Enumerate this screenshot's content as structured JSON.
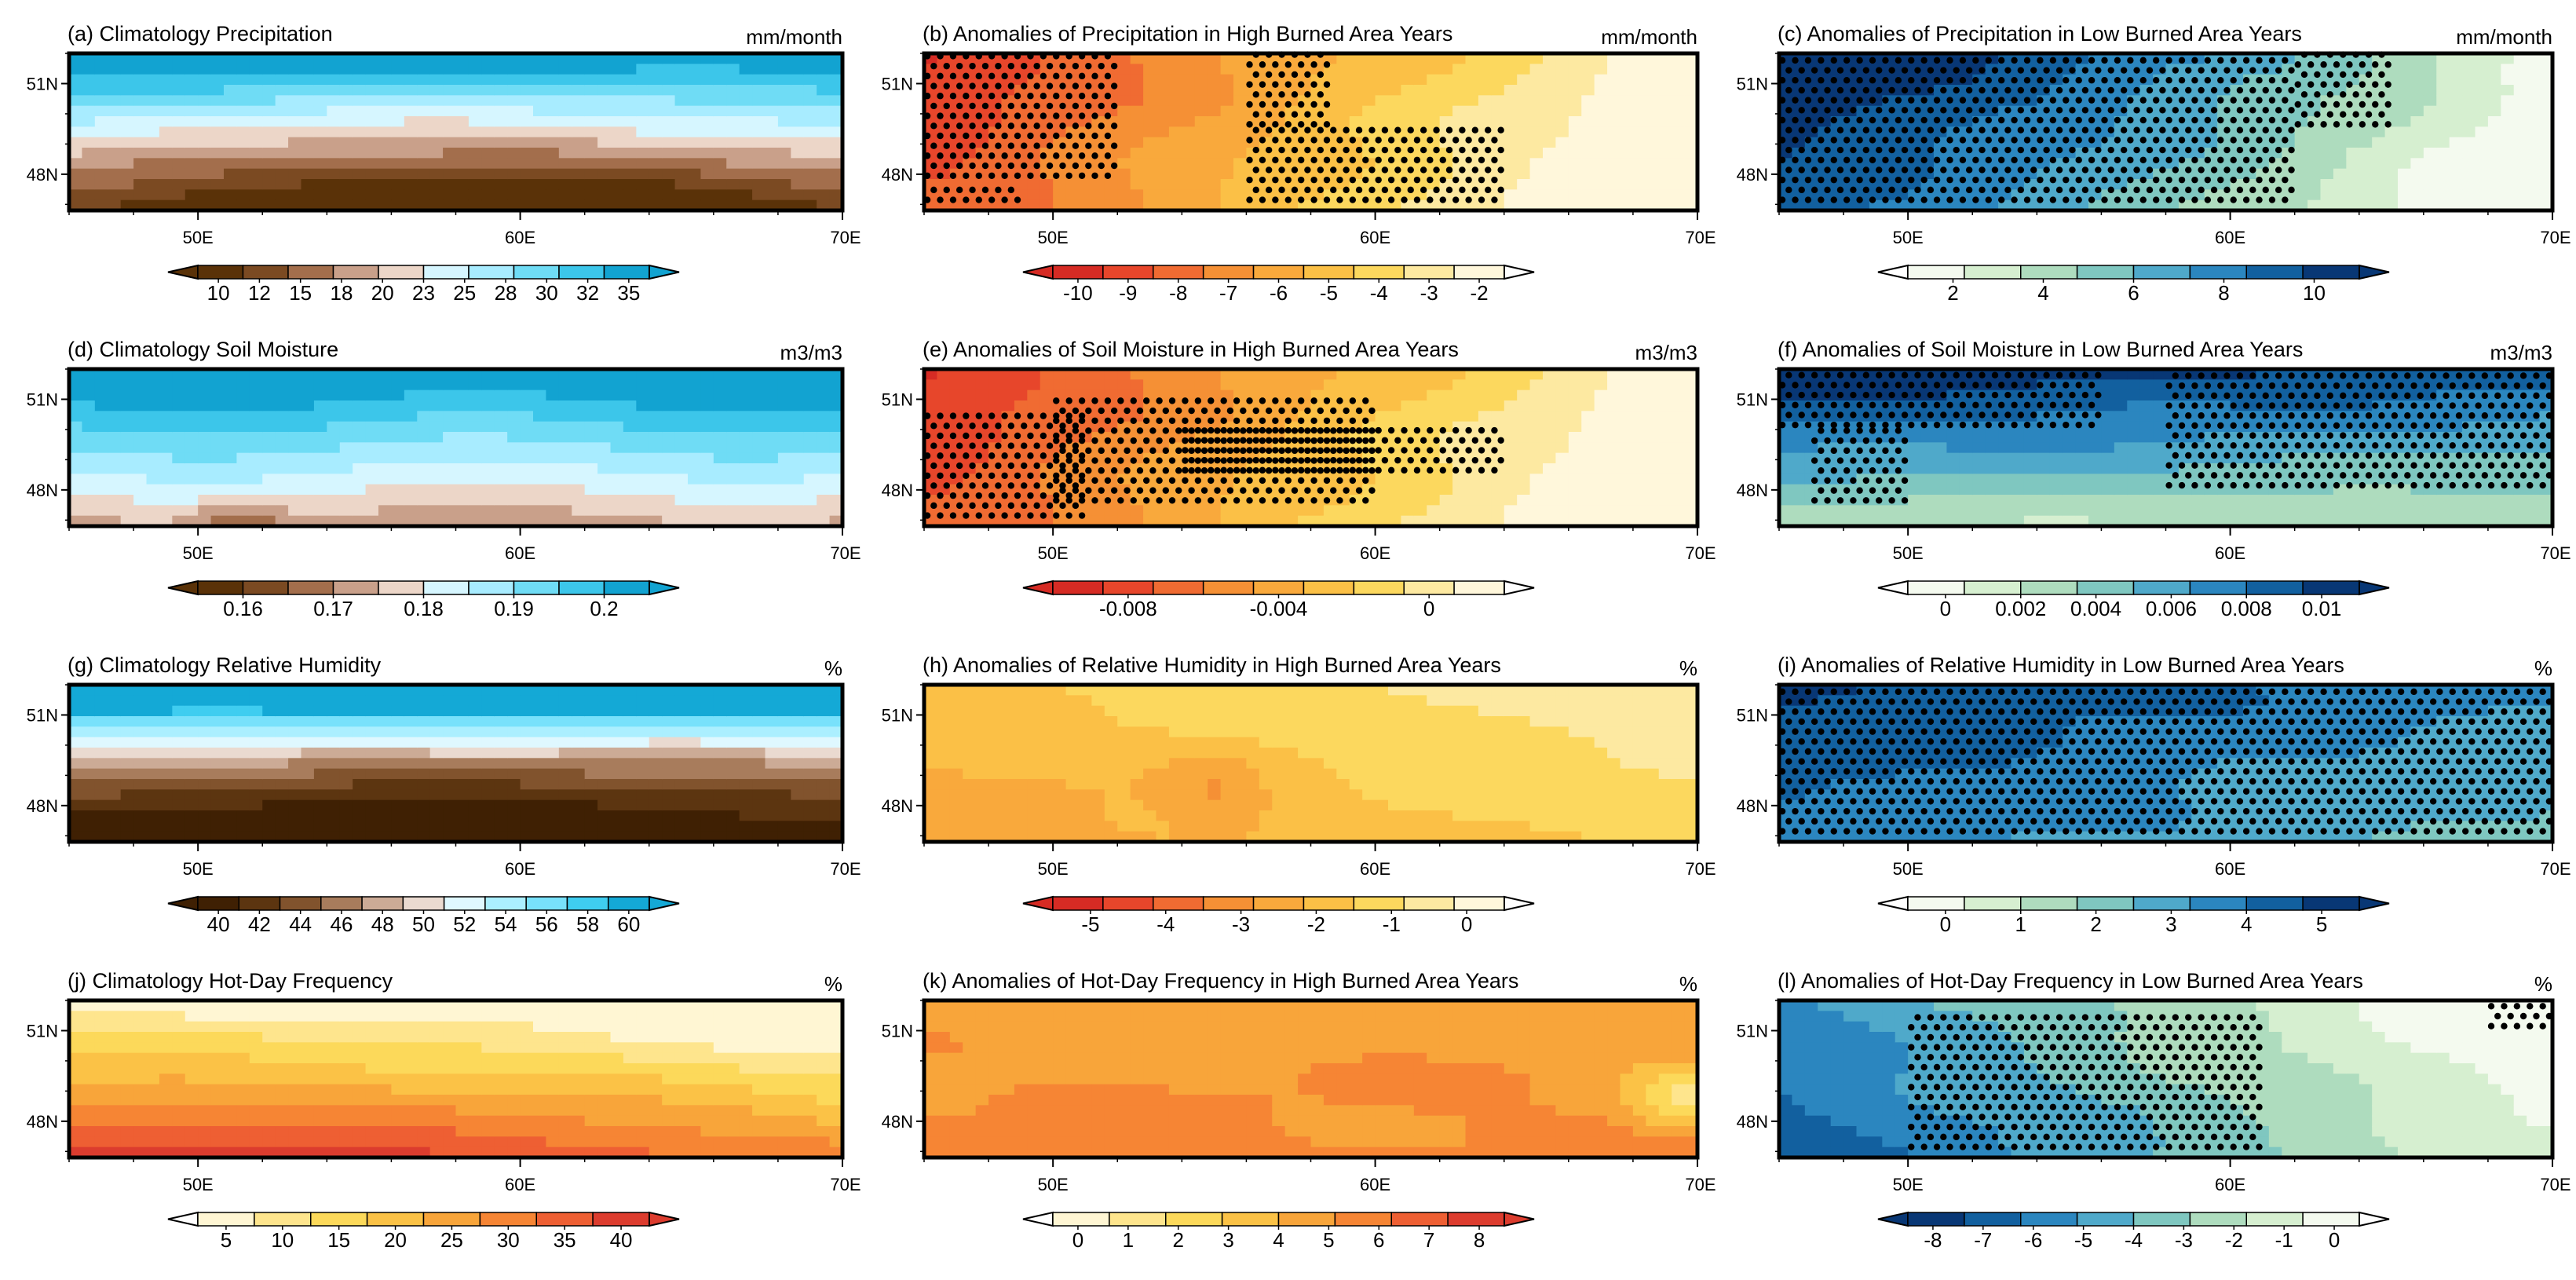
{
  "figure": {
    "x_ticks": [
      "50E",
      "60E",
      "70E"
    ],
    "y_ticks": [
      "51N",
      "48N"
    ],
    "colors": {
      "brown_blue": [
        "#5a3208",
        "#7b4a22",
        "#a36e4c",
        "#c9a08a",
        "#ecd6c8",
        "#d6f6ff",
        "#a8ecff",
        "#6fdcf5",
        "#3cc6ea",
        "#12a3d1"
      ],
      "brown_blue_rh": [
        "#3f2003",
        "#5c3510",
        "#81532d",
        "#a87c5c",
        "#ccab96",
        "#eadad0",
        "#dff8ff",
        "#abefff",
        "#78e1fb",
        "#3fcdf0",
        "#14a9d6"
      ],
      "warm_hotday": [
        "#fff6d3",
        "#fee58d",
        "#fcd95a",
        "#fbc246",
        "#f8a53a",
        "#f68534",
        "#ee5f33",
        "#dc3c2e"
      ],
      "red_yellow": [
        "#d62b24",
        "#e7462b",
        "#f06b32",
        "#f59035",
        "#f9a93c",
        "#fbc046",
        "#fcd85e",
        "#fde9a1",
        "#fff7db"
      ],
      "green_blue": [
        "#f4faef",
        "#d6efd0",
        "#aedcbe",
        "#7fc7c0",
        "#4fa9ca",
        "#2b86bf",
        "#12609f",
        "#083775"
      ],
      "blue_green": [
        "#083775",
        "#12609f",
        "#2b86bf",
        "#4fa9ca",
        "#7fc7c0",
        "#aedcbe",
        "#d6efd0",
        "#f4faef"
      ],
      "white": "#ffffff",
      "dot": "#000000"
    }
  },
  "chart_data": [
    {
      "id": "a",
      "type": "heatmap",
      "title": "(a) Climatology Precipitation",
      "unit": "mm/month",
      "palette": "brown_blue",
      "colorbar_ticks": [
        "10",
        "12",
        "15",
        "18",
        "20",
        "23",
        "25",
        "28",
        "30",
        "32",
        "35"
      ],
      "colorbar_ends": "both",
      "pattern": "bands_brown_bottom",
      "xlim": [
        46,
        70
      ],
      "ylim": [
        46.8,
        52.0
      ],
      "stipple": []
    },
    {
      "id": "b",
      "type": "heatmap",
      "title": "(b) Anomalies of Precipitation in High Burned Area Years",
      "unit": "mm/month",
      "palette": "red_yellow",
      "colorbar_ticks": [
        "-10",
        "-9",
        "-8",
        "-7",
        "-6",
        "-5",
        "-4",
        "-3",
        "-2"
      ],
      "colorbar_ends": "right-white",
      "pattern": "left_hot",
      "xlim": [
        46,
        70
      ],
      "ylim": [
        46.8,
        52.0
      ],
      "stipple": [
        [
          46,
          52,
          47.8,
          52
        ],
        [
          46,
          49,
          47,
          47.8
        ],
        [
          56,
          58.5,
          49.5,
          52
        ],
        [
          56,
          64,
          47,
          49.5
        ]
      ]
    },
    {
      "id": "c",
      "type": "heatmap",
      "title": "(c) Anomalies of Precipitation in Low Burned Area Years",
      "unit": "mm/month",
      "palette": "green_blue",
      "colorbar_ticks": [
        "2",
        "4",
        "6",
        "8",
        "10"
      ],
      "colorbar_ends": "both-white-left",
      "pattern": "blue_left",
      "xlim": [
        46,
        70
      ],
      "ylim": [
        46.8,
        52.0
      ],
      "stipple": [
        [
          46,
          62,
          47,
          52
        ],
        [
          62,
          65,
          49.5,
          52
        ]
      ]
    },
    {
      "id": "d",
      "type": "heatmap",
      "title": "(d) Climatology Soil Moisture",
      "unit": "m3/m3",
      "palette": "brown_blue",
      "colorbar_ticks": [
        "0.16",
        "0.17",
        "0.18",
        "0.19",
        "0.2"
      ],
      "colorbar_ends": "both",
      "pattern": "bands_blue_top",
      "xlim": [
        46,
        70
      ],
      "ylim": [
        46.8,
        52.0
      ],
      "stipple": []
    },
    {
      "id": "e",
      "type": "heatmap",
      "title": "(e) Anomalies of Soil Moisture in High Burned Area Years",
      "unit": "m3/m3",
      "palette": "red_yellow",
      "colorbar_ticks": [
        "-0.008",
        "-0.004",
        "0"
      ],
      "colorbar_ends": "right-white",
      "pattern": "left_hot",
      "xlim": [
        46,
        70
      ],
      "ylim": [
        46.8,
        52.0
      ],
      "stipple": [
        [
          46,
          51,
          47,
          50.5
        ],
        [
          50,
          60,
          47.5,
          51
        ],
        [
          54,
          64,
          48.5,
          50
        ]
      ]
    },
    {
      "id": "f",
      "type": "heatmap",
      "title": "(f) Anomalies of Soil Moisture in Low Burned Area Years",
      "unit": "m3/m3",
      "palette": "green_blue",
      "colorbar_ticks": [
        "0",
        "0.002",
        "0.004",
        "0.006",
        "0.008",
        "0.01"
      ],
      "colorbar_ends": "both-white-left",
      "pattern": "blue_top",
      "xlim": [
        46,
        70
      ],
      "ylim": [
        46.8,
        52.0
      ],
      "stipple": [
        [
          46,
          56,
          50,
          52
        ],
        [
          47,
          50,
          47.5,
          50
        ],
        [
          58,
          70,
          48,
          52
        ]
      ]
    },
    {
      "id": "g",
      "type": "heatmap",
      "title": "(g) Climatology Relative Humidity",
      "unit": "%",
      "palette": "brown_blue_rh",
      "colorbar_ticks": [
        "40",
        "42",
        "44",
        "46",
        "48",
        "50",
        "52",
        "54",
        "56",
        "58",
        "60"
      ],
      "colorbar_ends": "both",
      "pattern": "bands_brown_bottom_rh",
      "xlim": [
        46,
        70
      ],
      "ylim": [
        46.8,
        52.0
      ],
      "stipple": []
    },
    {
      "id": "h",
      "type": "heatmap",
      "title": "(h) Anomalies of Relative Humidity in High Burned Area Years",
      "unit": "%",
      "palette": "red_yellow",
      "colorbar_ticks": [
        "-5",
        "-4",
        "-3",
        "-2",
        "-1",
        "0"
      ],
      "colorbar_ends": "right-white",
      "pattern": "uniform_orange",
      "xlim": [
        46,
        70
      ],
      "ylim": [
        46.8,
        52.0
      ],
      "stipple": []
    },
    {
      "id": "i",
      "type": "heatmap",
      "title": "(i) Anomalies of Relative Humidity in Low Burned Area Years",
      "unit": "%",
      "palette": "green_blue",
      "colorbar_ticks": [
        "0",
        "1",
        "2",
        "3",
        "4",
        "5"
      ],
      "colorbar_ends": "both-white-left",
      "pattern": "blue_full",
      "xlim": [
        46,
        70
      ],
      "ylim": [
        46.8,
        52.0
      ],
      "stipple": [
        [
          46,
          70,
          47,
          52
        ]
      ]
    },
    {
      "id": "j",
      "type": "heatmap",
      "title": "(j) Climatology Hot-Day Frequency",
      "unit": "%",
      "palette": "warm_hotday",
      "colorbar_ticks": [
        "5",
        "10",
        "15",
        "20",
        "25",
        "30",
        "35",
        "40"
      ],
      "colorbar_ends": "both-white-left",
      "pattern": "hot_bottom",
      "xlim": [
        46,
        70
      ],
      "ylim": [
        46.8,
        52.0
      ],
      "stipple": []
    },
    {
      "id": "k",
      "type": "heatmap",
      "title": "(k) Anomalies of Hot-Day Frequency in High Burned Area Years",
      "unit": "%",
      "palette": "warm_hotday",
      "colorbar_ticks": [
        "0",
        "1",
        "2",
        "3",
        "4",
        "5",
        "6",
        "7",
        "8"
      ],
      "colorbar_ends": "both-white-left",
      "pattern": "warm_mixed",
      "xlim": [
        46,
        70
      ],
      "ylim": [
        46.8,
        52.0
      ],
      "stipple": []
    },
    {
      "id": "l",
      "type": "heatmap",
      "title": "(l) Anomalies of Hot-Day Frequency in Low Burned Area Years",
      "unit": "%",
      "palette": "blue_green",
      "colorbar_ticks": [
        "-8",
        "-7",
        "-6",
        "-5",
        "-4",
        "-3",
        "-2",
        "-1",
        "0"
      ],
      "colorbar_ends": "both-white-right",
      "pattern": "blue_bottomleft",
      "xlim": [
        46,
        70
      ],
      "ylim": [
        46.8,
        52.0
      ],
      "stipple": [
        [
          50,
          61,
          47,
          51.5
        ],
        [
          68,
          70,
          51,
          52
        ]
      ]
    }
  ]
}
